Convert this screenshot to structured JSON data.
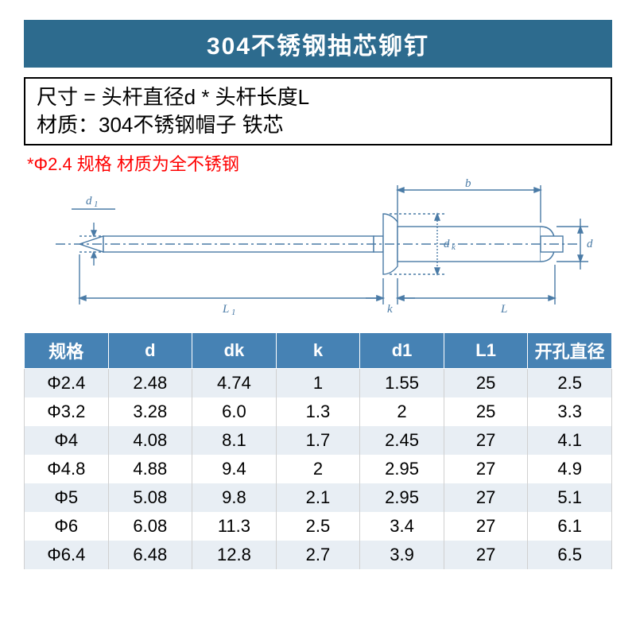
{
  "title": "304不锈钢抽芯铆钉",
  "info": {
    "line1": "尺寸 = 头杆直径d * 头杆长度L",
    "line2": "材质：304不锈钢帽子  铁芯"
  },
  "note": "*Φ2.4 规格 材质为全不锈钢",
  "diagram": {
    "stroke_color": "#4a7ba6",
    "text_color": "#4a7ba6",
    "label_d1": "d₁",
    "label_L1": "L₁",
    "label_k": "k",
    "label_b": "b",
    "label_dk": "dₖ",
    "label_d": "d",
    "label_L": "L",
    "fontsize": 15,
    "font_style": "italic"
  },
  "table": {
    "header_bg": "#4682b4",
    "header_fg": "#ffffff",
    "row_odd_bg": "#e8eef4",
    "row_even_bg": "#ffffff",
    "columns": [
      "规格",
      "d",
      "dk",
      "k",
      "d1",
      "L1",
      "开孔直径"
    ],
    "rows": [
      [
        "Φ2.4",
        "2.48",
        "4.74",
        "1",
        "1.55",
        "25",
        "2.5"
      ],
      [
        "Φ3.2",
        "3.28",
        "6.0",
        "1.3",
        "2",
        "25",
        "3.3"
      ],
      [
        "Φ4",
        "4.08",
        "8.1",
        "1.7",
        "2.45",
        "27",
        "4.1"
      ],
      [
        "Φ4.8",
        "4.88",
        "9.4",
        "2",
        "2.95",
        "27",
        "4.9"
      ],
      [
        "Φ5",
        "5.08",
        "9.8",
        "2.1",
        "2.95",
        "27",
        "5.1"
      ],
      [
        "Φ6",
        "6.08",
        "11.3",
        "2.5",
        "3.4",
        "27",
        "6.1"
      ],
      [
        "Φ6.4",
        "6.48",
        "12.8",
        "2.7",
        "3.9",
        "27",
        "6.5"
      ]
    ]
  },
  "colors": {
    "title_bg": "#2d6b8e",
    "note_color": "#ff0000",
    "border_color": "#000000"
  }
}
